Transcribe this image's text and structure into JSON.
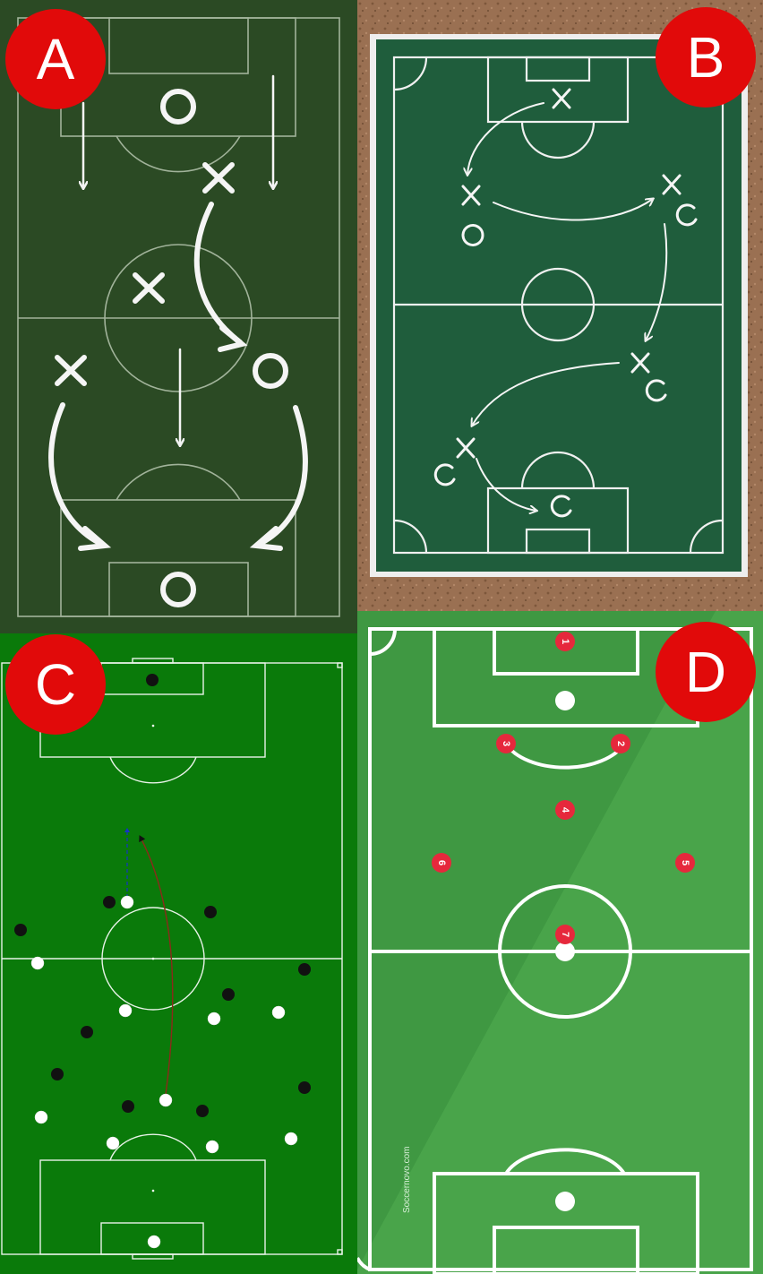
{
  "panels": [
    {
      "id": "a",
      "label": "A",
      "style": "chalk-dark"
    },
    {
      "id": "b",
      "label": "B",
      "style": "chalkboard-on-cork"
    },
    {
      "id": "c",
      "label": "C",
      "style": "diagram-dots"
    },
    {
      "id": "d",
      "label": "D",
      "style": "numbered-formation"
    }
  ],
  "panel_d": {
    "player_numbers": [
      "1",
      "2",
      "3",
      "4",
      "5",
      "6",
      "7"
    ],
    "credit": "Soccernovo.com"
  },
  "colors": {
    "badge_red": "#e10a0a",
    "chalk_green": "#2b4a24",
    "board_green": "#1f5d3c",
    "cork": "#9a7052",
    "pitch_c": "#0a7a0a",
    "pitch_d": "#49a44a",
    "player_red": "#e6283c"
  },
  "icons": [
    "x-marker-icon",
    "o-marker-icon",
    "arrow-icon",
    "player-dot-icon"
  ]
}
